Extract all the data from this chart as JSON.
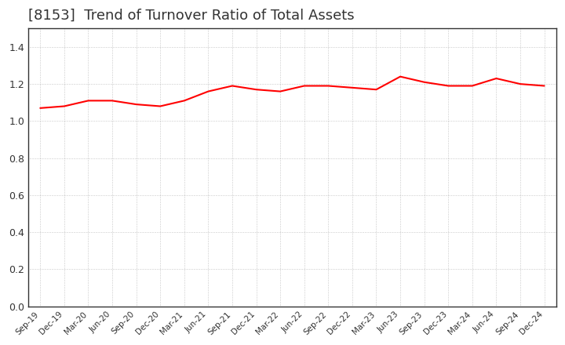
{
  "title": "[8153]  Trend of Turnover Ratio of Total Assets",
  "title_fontsize": 13,
  "title_color": "#333333",
  "line_color": "#FF0000",
  "line_width": 1.5,
  "background_color": "#FFFFFF",
  "grid_color": "#999999",
  "spine_color": "#333333",
  "ylim": [
    0.0,
    1.5
  ],
  "yticks": [
    0.0,
    0.2,
    0.4,
    0.6,
    0.8,
    1.0,
    1.2,
    1.4
  ],
  "x_labels": [
    "Sep-19",
    "Dec-19",
    "Mar-20",
    "Jun-20",
    "Sep-20",
    "Dec-20",
    "Mar-21",
    "Jun-21",
    "Sep-21",
    "Dec-21",
    "Mar-22",
    "Jun-22",
    "Sep-22",
    "Dec-22",
    "Mar-23",
    "Jun-23",
    "Sep-23",
    "Dec-23",
    "Mar-24",
    "Jun-24",
    "Sep-24",
    "Dec-24"
  ],
  "values": [
    1.07,
    1.08,
    1.11,
    1.11,
    1.09,
    1.08,
    1.11,
    1.16,
    1.19,
    1.17,
    1.16,
    1.19,
    1.19,
    1.18,
    1.17,
    1.24,
    1.21,
    1.19,
    1.19,
    1.23,
    1.2,
    1.19
  ]
}
